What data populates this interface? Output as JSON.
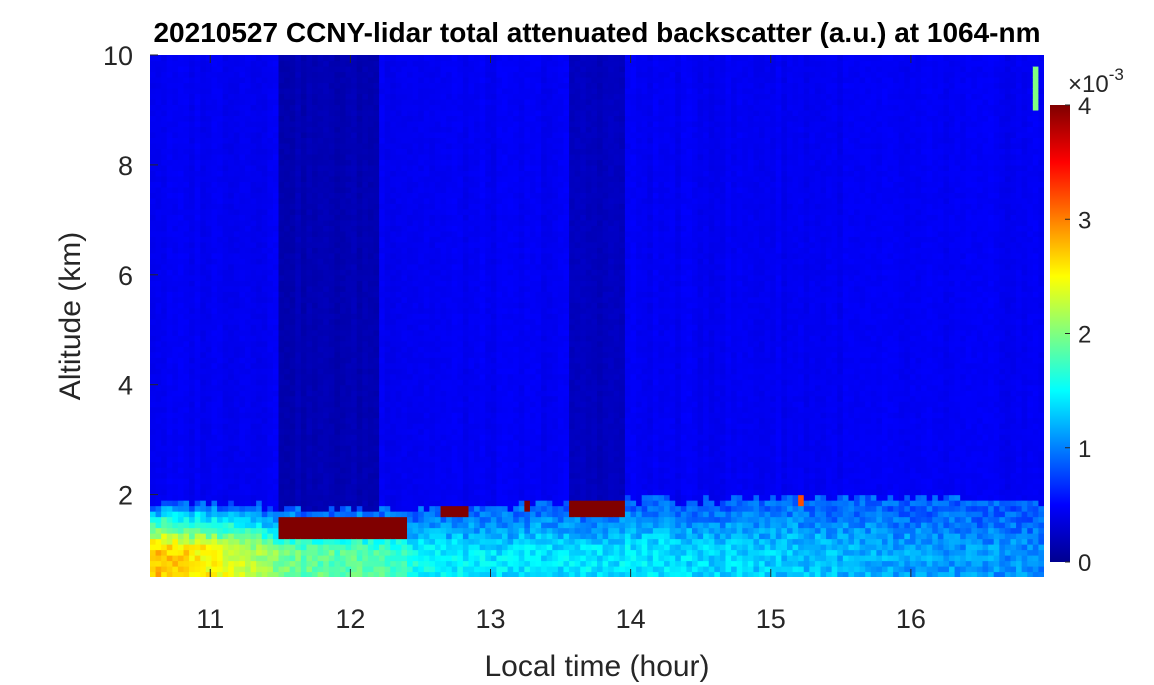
{
  "chart_data": {
    "type": "heatmap",
    "title": "20210527 CCNY-lidar total attenuated backscatter (a.u.) at 1064-nm",
    "xlabel": "Local time (hour)",
    "ylabel": "Altitude (km)",
    "xlim": [
      10.57,
      16.95
    ],
    "ylim": [
      0.5,
      10
    ],
    "x_ticks": [
      "11",
      "12",
      "13",
      "14",
      "15",
      "16"
    ],
    "x_tick_values": [
      11,
      12,
      13,
      14,
      15,
      16
    ],
    "y_ticks": [
      "2",
      "4",
      "6",
      "8",
      "10"
    ],
    "y_tick_values": [
      2,
      4,
      6,
      8,
      10
    ],
    "colormap": "jet",
    "colorbar": {
      "range": [
        0,
        4
      ],
      "ticks": [
        "0",
        "1",
        "2",
        "3",
        "4"
      ],
      "tick_values": [
        0,
        1,
        2,
        3,
        4
      ],
      "multiplier_text": "×10",
      "multiplier_exponent": "-3"
    },
    "background_level": 0.45,
    "boundary_layer_top_km": [
      [
        10.57,
        1.9
      ],
      [
        11.0,
        1.85
      ],
      [
        11.5,
        1.75
      ],
      [
        12.0,
        1.75
      ],
      [
        12.5,
        1.75
      ],
      [
        13.0,
        1.8
      ],
      [
        13.5,
        1.85
      ],
      [
        14.0,
        1.9
      ],
      [
        14.5,
        1.9
      ],
      [
        15.0,
        1.95
      ],
      [
        15.5,
        1.95
      ],
      [
        16.0,
        1.95
      ],
      [
        16.5,
        1.9
      ],
      [
        16.95,
        1.85
      ]
    ],
    "aerosol_layer_level": [
      [
        10.57,
        2.8
      ],
      [
        11.0,
        2.5
      ],
      [
        11.3,
        2.2
      ],
      [
        11.6,
        1.9
      ],
      [
        12.3,
        1.8
      ],
      [
        12.5,
        1.5
      ],
      [
        13.0,
        1.4
      ],
      [
        14.0,
        1.4
      ],
      [
        15.0,
        1.3
      ],
      [
        16.0,
        1.15
      ],
      [
        16.95,
        1.05
      ]
    ],
    "cloud_top_patches": [
      {
        "t_start": 11.5,
        "t_end": 12.4,
        "alt_bottom": 1.2,
        "alt_top": 1.65,
        "value": 4
      },
      {
        "t_start": 12.65,
        "t_end": 12.85,
        "alt_bottom": 1.6,
        "alt_top": 1.8,
        "value": 4
      },
      {
        "t_start": 13.25,
        "t_end": 13.3,
        "alt_bottom": 1.7,
        "alt_top": 1.85,
        "value": 4
      },
      {
        "t_start": 13.55,
        "t_end": 13.95,
        "alt_bottom": 1.6,
        "alt_top": 1.95,
        "value": 4
      },
      {
        "t_start": 15.2,
        "t_end": 15.25,
        "alt_bottom": 1.85,
        "alt_top": 2.0,
        "value": 3.2
      }
    ],
    "high_signal_patches": [
      {
        "t_start": 16.87,
        "t_end": 16.93,
        "alt_bottom": 9.0,
        "alt_top": 9.8,
        "value": 2.0
      }
    ],
    "dark_time_bands": [
      {
        "t_start": 11.5,
        "t_end": 12.2,
        "value": 0.2
      },
      {
        "t_start": 13.55,
        "t_end": 13.95,
        "value": 0.25
      }
    ]
  }
}
